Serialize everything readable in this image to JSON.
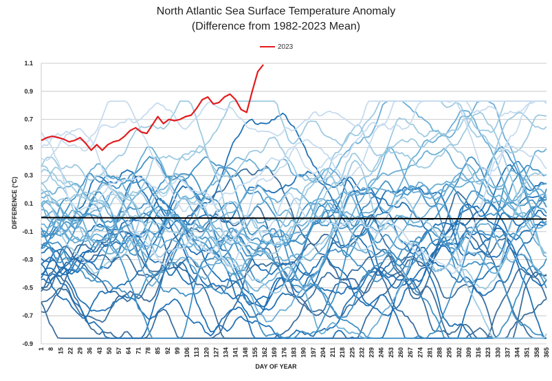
{
  "chart_data": {
    "type": "line",
    "title": "North Atlantic Sea Surface Temperature Anomaly",
    "subtitle": "(Difference from 1982-2023 Mean)",
    "xlabel": "DAY OF YEAR",
    "ylabel": "DIFFERENCE (°C)",
    "ylim": [
      -0.9,
      1.1
    ],
    "xlim": [
      1,
      365
    ],
    "y_ticks": [
      "1.1",
      "0.9",
      "0.7",
      "0.5",
      "0.3",
      "0.1",
      "-0.1",
      "-0.3",
      "-0.5",
      "-0.7",
      "-0.9"
    ],
    "x_ticks": [
      "1",
      "8",
      "15",
      "22",
      "29",
      "36",
      "43",
      "50",
      "57",
      "64",
      "71",
      "78",
      "85",
      "92",
      "99",
      "106",
      "113",
      "120",
      "127",
      "134",
      "141",
      "148",
      "155",
      "162",
      "169",
      "176",
      "183",
      "190",
      "197",
      "204",
      "211",
      "218",
      "225",
      "232",
      "239",
      "246",
      "253",
      "260",
      "267",
      "274",
      "281",
      "288",
      "295",
      "302",
      "309",
      "316",
      "323",
      "330",
      "337",
      "344",
      "351",
      "358",
      "365"
    ],
    "grid": true,
    "legend": "top-center",
    "highlight_series": {
      "name": "2023",
      "color": "#e31a1c",
      "x": [
        1,
        5,
        9,
        13,
        17,
        21,
        25,
        29,
        33,
        37,
        41,
        45,
        49,
        53,
        57,
        61,
        65,
        69,
        73,
        77,
        81,
        85,
        89,
        93,
        97,
        101,
        105,
        109,
        113,
        117,
        121,
        125,
        129,
        133,
        137,
        141,
        145,
        149,
        153,
        157,
        161
      ],
      "y": [
        0.55,
        0.57,
        0.58,
        0.57,
        0.56,
        0.54,
        0.55,
        0.57,
        0.53,
        0.48,
        0.52,
        0.48,
        0.52,
        0.54,
        0.55,
        0.58,
        0.62,
        0.64,
        0.61,
        0.6,
        0.66,
        0.72,
        0.67,
        0.7,
        0.69,
        0.7,
        0.72,
        0.73,
        0.78,
        0.84,
        0.86,
        0.81,
        0.82,
        0.86,
        0.88,
        0.84,
        0.77,
        0.75,
        0.9,
        1.04,
        1.09
      ]
    },
    "mean_line": {
      "color": "#000000",
      "x": [
        1,
        365
      ],
      "y": [
        0.0,
        -0.01
      ]
    },
    "background_series": {
      "count": 41,
      "colors": [
        "#c6dbef",
        "#9ecae1",
        "#6baed6",
        "#4292c6",
        "#2171b5",
        "#3c6e9c"
      ],
      "baselines": [
        -0.68,
        -0.62,
        -0.58,
        -0.55,
        -0.52,
        -0.48,
        -0.45,
        -0.42,
        -0.4,
        -0.38,
        -0.35,
        -0.33,
        -0.3,
        -0.28,
        -0.25,
        -0.22,
        -0.2,
        -0.18,
        -0.15,
        -0.12,
        -0.1,
        -0.08,
        -0.05,
        -0.02,
        0.02,
        0.05,
        0.08,
        0.1,
        0.13,
        0.16,
        0.18,
        0.21,
        0.24,
        0.27,
        0.3,
        0.34,
        0.38,
        0.43,
        0.5,
        0.56,
        0.62
      ]
    }
  }
}
